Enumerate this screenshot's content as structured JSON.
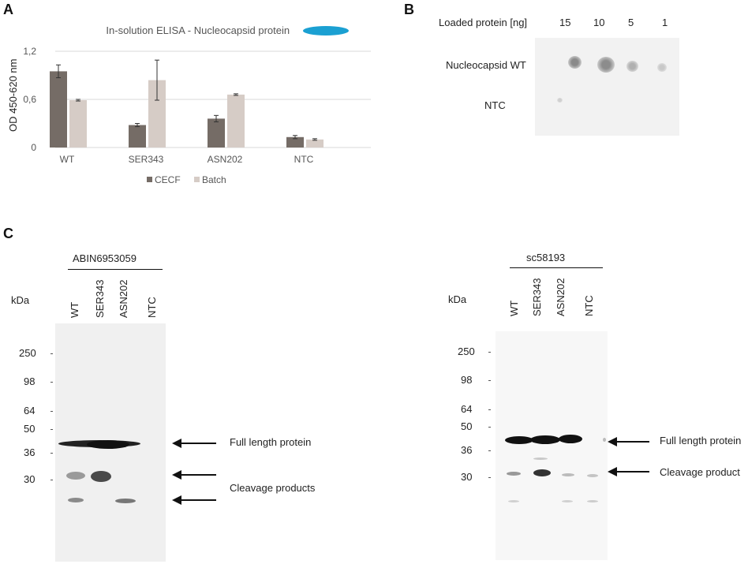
{
  "panels": {
    "a": "A",
    "b": "B",
    "c": "C"
  },
  "chart_data": {
    "type": "bar",
    "title": "In-solution ELISA - Nucleocapsid protein",
    "ylabel": "OD 450-620 nm",
    "xlabel": "",
    "ylim": [
      0,
      1.2
    ],
    "yticks": [
      "0",
      "0,6",
      "1,2"
    ],
    "categories": [
      "WT",
      "SER343",
      "ASN202",
      "NTC"
    ],
    "series": [
      {
        "name": "CECF",
        "color": "#756c66",
        "values": [
          0.95,
          0.28,
          0.36,
          0.13
        ],
        "errors": [
          0.08,
          0.02,
          0.04,
          0.02
        ]
      },
      {
        "name": "Batch",
        "color": "#d6ccc6",
        "values": [
          0.59,
          0.84,
          0.66,
          0.1
        ],
        "errors": [
          0.01,
          0.25,
          0.01,
          0.01
        ]
      }
    ],
    "legend_position": "bottom",
    "grid": true,
    "title_icon_color": "#1ba0d2"
  },
  "dotblot": {
    "header": "Loaded protein [ng]",
    "amounts": [
      "15",
      "10",
      "5",
      "1"
    ],
    "rows": [
      "Nucleocapsid WT",
      "NTC"
    ]
  },
  "westerns": {
    "left": {
      "antibody": "ABIN6953059",
      "kda_label": "kDa",
      "lanes": [
        "WT",
        "SER343",
        "ASN202",
        "NTC"
      ],
      "markers": [
        "250",
        "98",
        "64",
        "50",
        "36",
        "30"
      ],
      "annotations": [
        "Full length protein",
        "Cleavage products"
      ]
    },
    "right": {
      "antibody": "sc58193",
      "kda_label": "kDa",
      "lanes": [
        "WT",
        "SER343",
        "ASN202",
        "NTC"
      ],
      "markers": [
        "250",
        "98",
        "64",
        "50",
        "36",
        "30"
      ],
      "annotations": [
        "Full length protein",
        "Cleavage product"
      ]
    }
  }
}
